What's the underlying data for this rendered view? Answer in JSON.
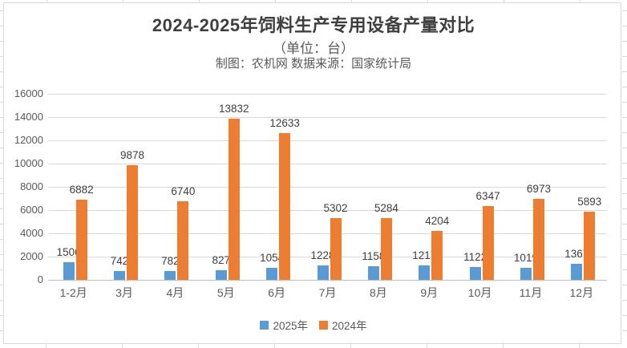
{
  "header": {
    "title": "2024-2025年饲料生产专用设备产量对比",
    "subtitle": "（单位：台）",
    "source": "制图：农机网 数据来源：国家统计局"
  },
  "chart_data": {
    "type": "bar",
    "title": "2024-2025年饲料生产专用设备产量对比",
    "subtitle": "（单位：台）",
    "source_note": "制图：农机网 数据来源：国家统计局",
    "categories": [
      "1-2月",
      "3月",
      "4月",
      "5月",
      "6月",
      "7月",
      "8月",
      "9月",
      "10月",
      "11月",
      "12月"
    ],
    "series": [
      {
        "name": "2025年",
        "color": "#5B9BD5",
        "values": [
          1506,
          742,
          782,
          827,
          1054,
          1228,
          1158,
          1217,
          1122,
          1019,
          1367
        ]
      },
      {
        "name": "2024年",
        "color": "#ED7D31",
        "values": [
          6882,
          9878,
          6740,
          13832,
          12633,
          5302,
          5284,
          4204,
          6347,
          6973,
          5893
        ]
      }
    ],
    "ylim": [
      0,
      16000
    ],
    "ytick_step": 2000,
    "ytick_labels": [
      "0",
      "2000",
      "4000",
      "6000",
      "8000",
      "10000",
      "12000",
      "14000",
      "16000"
    ],
    "grid": true,
    "data_labels": true,
    "legend_position": "bottom"
  },
  "colors": {
    "series_2025": "#5B9BD5",
    "series_2024": "#ED7D31",
    "gridline": "#D9D9D9",
    "axis_line": "#BFBFBF",
    "axis_text": "#595959",
    "label_text": "#404040"
  }
}
